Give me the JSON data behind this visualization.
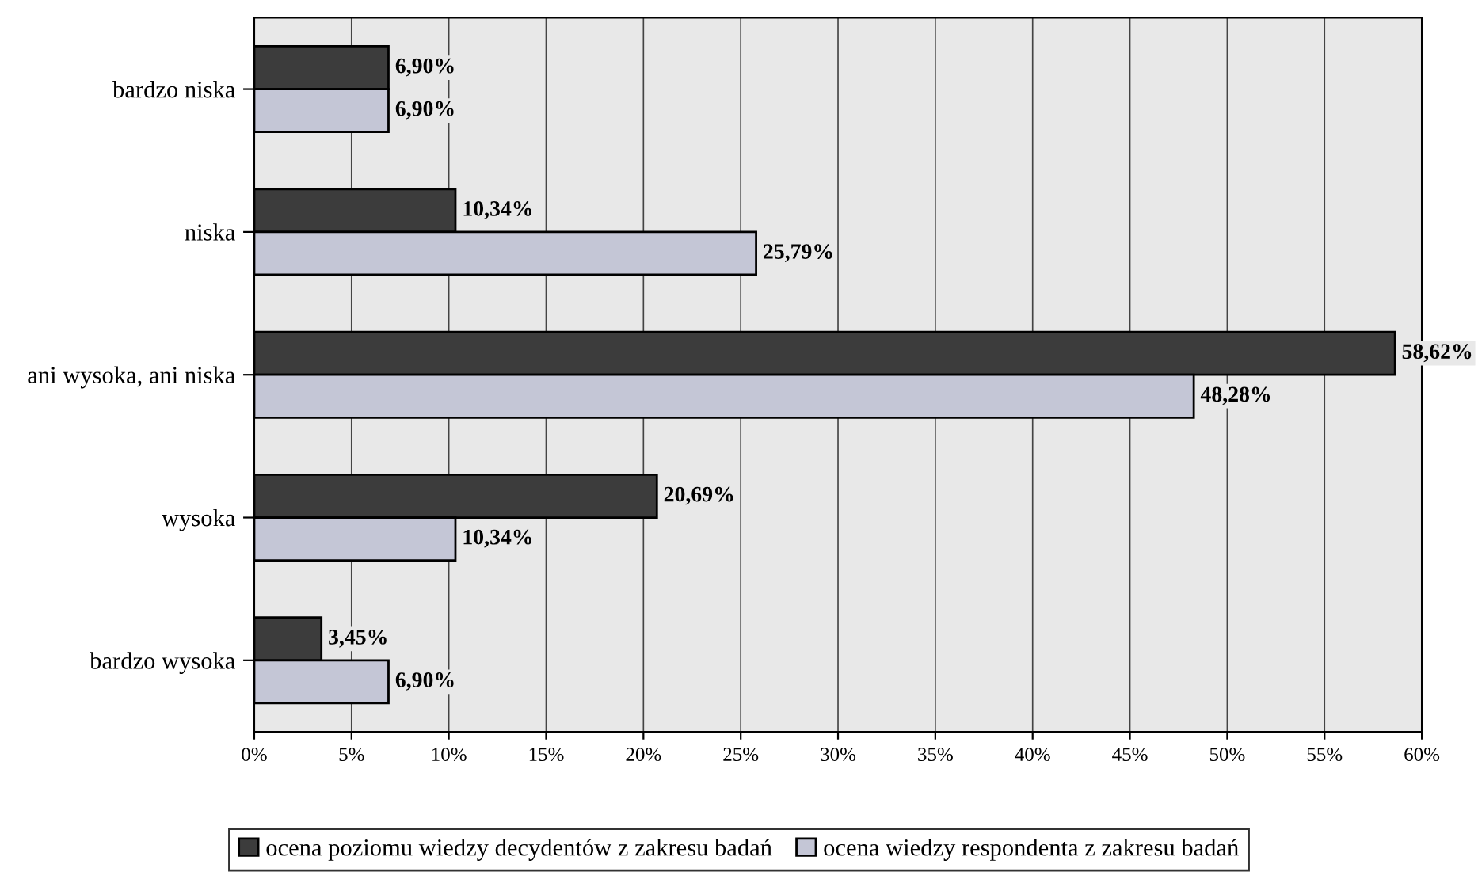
{
  "chart_data": {
    "type": "bar",
    "orientation": "horizontal",
    "categories": [
      "bardzo niska",
      "niska",
      "ani wysoka, ani niska",
      "wysoka",
      "bardzo wysoka"
    ],
    "series": [
      {
        "name": "ocena poziomu wiedzy decydentów z zakresu badań",
        "color": "#3c3c3c",
        "values": [
          6.9,
          10.34,
          58.62,
          20.69,
          3.45
        ],
        "value_labels": [
          "6,90%",
          "10,34%",
          "58,62%",
          "20,69%",
          "3,45%"
        ]
      },
      {
        "name": "ocena wiedzy respondenta z zakresu badań",
        "color": "#c4c6d6",
        "values": [
          6.9,
          25.79,
          48.28,
          10.34,
          6.9
        ],
        "value_labels": [
          "6,90%",
          "25,79%",
          "48,28%",
          "10,34%",
          "6,90%"
        ]
      }
    ],
    "xlim": [
      0,
      60
    ],
    "xticks": [
      {
        "value": 0,
        "label": "0%"
      },
      {
        "value": 5,
        "label": "5%"
      },
      {
        "value": 10,
        "label": "10%"
      },
      {
        "value": 15,
        "label": "15%"
      },
      {
        "value": 20,
        "label": "20%"
      },
      {
        "value": 25,
        "label": "25%"
      },
      {
        "value": 30,
        "label": "30%"
      },
      {
        "value": 35,
        "label": "35%"
      },
      {
        "value": 40,
        "label": "40%"
      },
      {
        "value": 45,
        "label": "45%"
      },
      {
        "value": 50,
        "label": "50%"
      },
      {
        "value": 55,
        "label": "55%"
      },
      {
        "value": 60,
        "label": "60%"
      }
    ],
    "grid": "x",
    "legend": "bottom"
  }
}
